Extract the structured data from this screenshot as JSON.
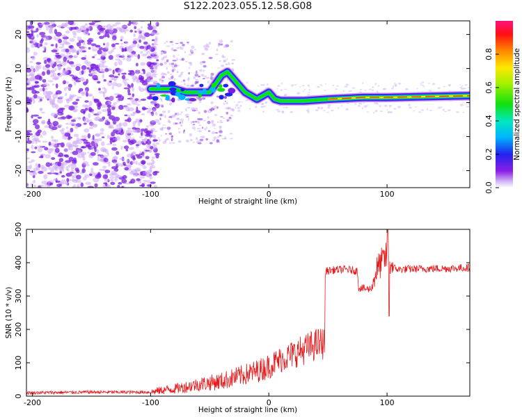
{
  "title": "S122.2023.055.12.58.G08",
  "colors": {
    "snr_line": "#e8191b",
    "dot_purple": "#7a1ee0",
    "dot_light": "#cdaaf5",
    "axis": "#000000",
    "background": "#ffffff"
  },
  "chart_data": [
    {
      "type": "heatmap",
      "name": "spectrogram",
      "title": "S122.2023.055.12.58.G08",
      "xlabel": "Height of straight line (km)",
      "ylabel": "Frequency (Hz)",
      "xlim": [
        -205,
        170
      ],
      "ylim": [
        -25,
        24
      ],
      "xticks": [
        -200,
        -100,
        0,
        100
      ],
      "yticks": [
        -20,
        -10,
        0,
        10,
        20
      ],
      "xtick_labels": [
        "-200",
        "-100",
        "0",
        "100"
      ],
      "ytick_labels": [
        "-20",
        "-10",
        "0",
        "10",
        "20"
      ],
      "noise_region_km": [
        -205,
        -100
      ],
      "ridge": {
        "x_km": [
          -100,
          -90,
          -80,
          -70,
          -60,
          -50,
          -40,
          -35,
          -30,
          -20,
          -10,
          -5,
          0,
          5,
          10,
          30,
          50,
          80,
          90,
          100,
          140,
          170
        ],
        "freq_hz": [
          4,
          4,
          4,
          3,
          3,
          3,
          8,
          9,
          7,
          3,
          1,
          2,
          3,
          1,
          0.5,
          0.5,
          1,
          1.5,
          1.5,
          1.5,
          1.8,
          2
        ]
      },
      "colorbar": {
        "label": "Normalized spectral amplitude",
        "range": [
          0.0,
          1.0
        ],
        "ticks": [
          0.0,
          0.2,
          0.4,
          0.6,
          0.8
        ],
        "tick_labels": [
          "0.0",
          "0.2",
          "0.4",
          "0.6",
          "0.8"
        ]
      }
    },
    {
      "type": "line",
      "name": "snr",
      "xlabel": "Height of straight line (km)",
      "ylabel": "SNR (10 * v/v)",
      "xlim": [
        -205,
        170
      ],
      "ylim": [
        0,
        500
      ],
      "xticks": [
        -200,
        -100,
        0,
        100
      ],
      "yticks": [
        0,
        100,
        200,
        300,
        400,
        500
      ],
      "xtick_labels": [
        "-200",
        "-100",
        "0",
        "100"
      ],
      "ytick_labels": [
        "0",
        "100",
        "200",
        "300",
        "400",
        "500"
      ],
      "series": [
        {
          "name": "SNR",
          "x": [
            -205,
            -150,
            -100,
            -90,
            -80,
            -70,
            -60,
            -50,
            -40,
            -30,
            -20,
            -10,
            0,
            10,
            20,
            30,
            40,
            47,
            48,
            55,
            65,
            75,
            76,
            85,
            88,
            90,
            95,
            100,
            105,
            110,
            130,
            150,
            170
          ],
          "y": [
            10,
            12,
            12,
            18,
            22,
            28,
            35,
            40,
            45,
            55,
            65,
            75,
            90,
            110,
            125,
            140,
            155,
            160,
            375,
            378,
            380,
            375,
            325,
            320,
            330,
            370,
            400,
            420,
            385,
            380,
            382,
            383,
            385
          ]
        }
      ]
    }
  ]
}
